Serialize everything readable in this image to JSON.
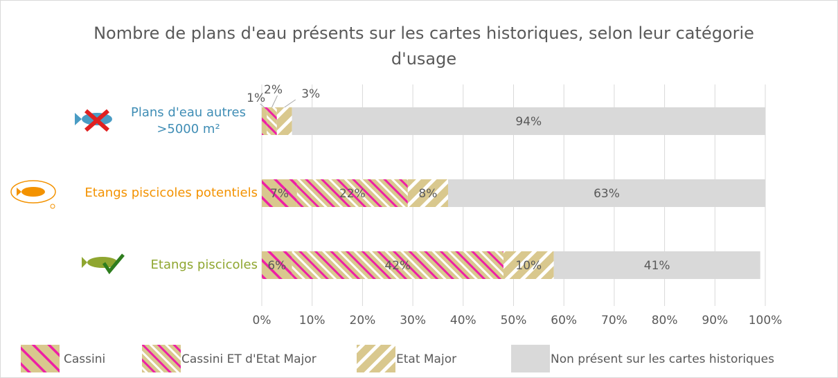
{
  "chart_data": {
    "type": "stacked_barh",
    "title": "Nombre de plans d'eau présents sur les cartes historiques, selon leur catégorie d'usage",
    "categories": [
      "Plans d'eau autres >5000 m²",
      "Etangs piscicoles potentiels",
      "Etangs piscicoles"
    ],
    "category_colors": [
      "#3f8db5",
      "#f39200",
      "#8fa630"
    ],
    "series": [
      {
        "name": "Cassini",
        "color": "#d9c88e",
        "hatch": "#ee1fa5",
        "values": [
          1,
          7,
          6
        ],
        "value_labels": [
          "1%",
          "7%",
          "6%"
        ]
      },
      {
        "name": "Cassini ET d'Etat Major",
        "color": "#d9c88e",
        "hatch": "#ee1fa5",
        "values": [
          2,
          22,
          42
        ],
        "value_labels": [
          "2%",
          "22%",
          "42%"
        ]
      },
      {
        "name": "Etat Major",
        "color": "#d9c88e",
        "hatch": "#ffffff",
        "values": [
          3,
          8,
          10
        ],
        "value_labels": [
          "3%",
          "8%",
          "10%"
        ]
      },
      {
        "name": "Non présent sur les cartes historiques",
        "color": "#d9d9d9",
        "values": [
          94,
          63,
          41
        ],
        "value_labels": [
          "94%",
          "63%",
          "41%"
        ]
      }
    ],
    "xlim": [
      0,
      100
    ],
    "xticks": [
      {
        "value": 0,
        "label": "0%"
      },
      {
        "value": 10,
        "label": "10%"
      },
      {
        "value": 20,
        "label": "20%"
      },
      {
        "value": 30,
        "label": "30%"
      },
      {
        "value": 40,
        "label": "40%"
      },
      {
        "value": 50,
        "label": "50%"
      },
      {
        "value": 60,
        "label": "60%"
      },
      {
        "value": 70,
        "label": "70%"
      },
      {
        "value": 80,
        "label": "80%"
      },
      {
        "value": 90,
        "label": "90%"
      },
      {
        "value": 100,
        "label": "100%"
      }
    ],
    "grid": true,
    "legend": "bottom"
  }
}
